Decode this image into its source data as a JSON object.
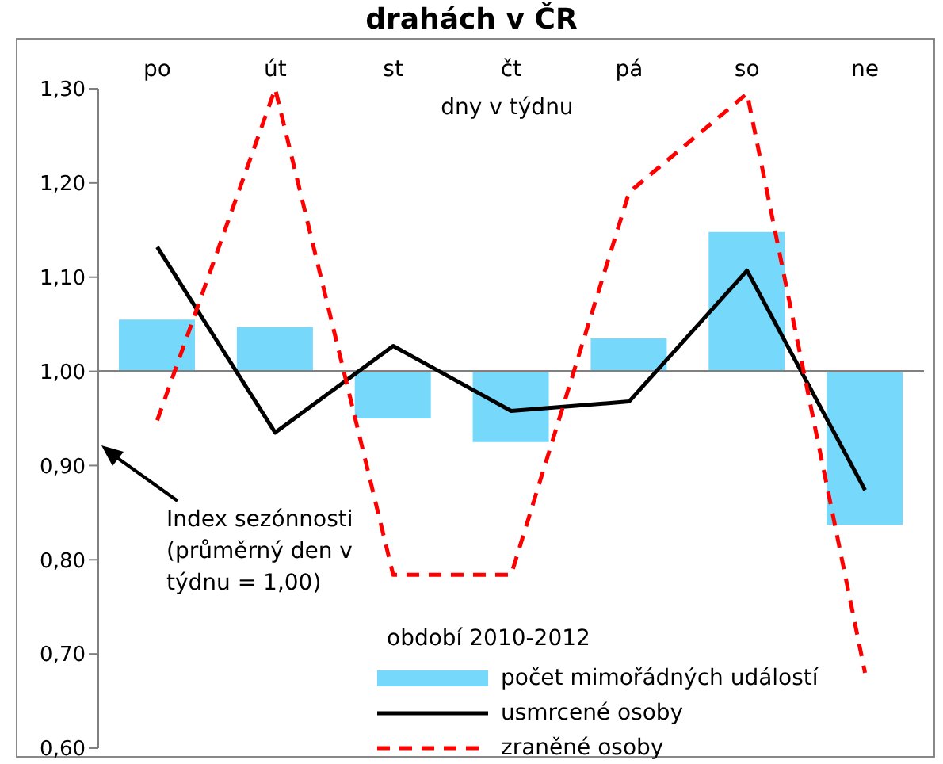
{
  "chart_data": {
    "type": "bar",
    "title": "drahách v ČR",
    "xlabel": "dny v týdnu",
    "legend_title": "období 2010-2012",
    "categories": [
      "po",
      "út",
      "st",
      "čt",
      "pá",
      "so",
      "ne"
    ],
    "series": [
      {
        "name": "počet mimořádných událostí",
        "color": "#76d9fc",
        "base": [
          1,
          1,
          1,
          1,
          1,
          1,
          1
        ],
        "values": [
          0.055,
          0.047,
          -0.05,
          -0.075,
          0.035,
          0.148,
          -0.163
        ]
      },
      {
        "name": "usmrcené osoby",
        "type": "line",
        "color": "#000000",
        "line_style": "solid",
        "values": [
          1.132,
          0.935,
          1.027,
          0.958,
          0.968,
          1.107,
          0.874
        ]
      },
      {
        "name": "zraněné osoby",
        "type": "line",
        "color": "#ff0000",
        "line_style": "dashed",
        "values": [
          0.948,
          1.3,
          0.784,
          0.784,
          1.19,
          1.295,
          0.68
        ]
      }
    ],
    "ylim": [
      0.6,
      1.3
    ],
    "yticks": [
      {
        "value": 0.6,
        "label": "0,60"
      },
      {
        "value": 0.7,
        "label": "0,70"
      },
      {
        "value": 0.8,
        "label": "0,80"
      },
      {
        "value": 0.9,
        "label": "0,90"
      },
      {
        "value": 1.0,
        "label": "1,00"
      },
      {
        "value": 1.1,
        "label": "1,10"
      },
      {
        "value": 1.2,
        "label": "1,20"
      },
      {
        "value": 1.3,
        "label": "1,30"
      }
    ],
    "ref_lines": [
      {
        "axis": "y",
        "value": 1.0,
        "color": "#808080"
      }
    ],
    "annotations": [
      "Index sezónnosti (průměrný den v týdnu = 1,00)"
    ],
    "legend": "bottom right",
    "marker": "none"
  }
}
